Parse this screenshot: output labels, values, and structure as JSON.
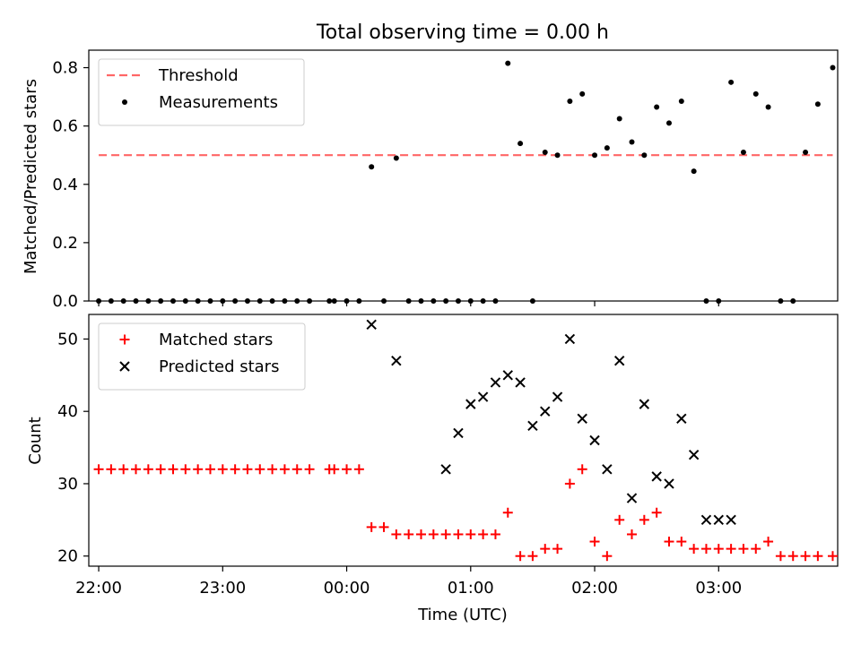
{
  "chart_data": [
    {
      "type": "scatter",
      "title": "Total observing time = 0.00 h",
      "xlabel": "",
      "ylabel": "Matched/Predicted stars",
      "xlim": [
        -0.29,
        2.73
      ],
      "ylim": [
        0.0,
        0.86
      ],
      "yticks": [
        "0.0",
        "0.2",
        "0.4",
        "0.6",
        "0.8"
      ],
      "yticks_values": [
        0.0,
        0.2,
        0.4,
        0.6,
        0.8
      ],
      "grid": false,
      "legend_position": "top-left",
      "threshold": {
        "name": "Threshold",
        "y": 0.5,
        "x_range": [
          -0.25,
          2.71
        ],
        "color": "#ff6666"
      },
      "series": [
        {
          "name": "Measurements",
          "color": "#000000",
          "x": [
            -0.25,
            -0.2,
            -0.15,
            -0.1,
            -0.05,
            0.0,
            0.05,
            0.1,
            0.15,
            0.2,
            0.25,
            0.3,
            0.35,
            0.4,
            0.45,
            0.5,
            0.55,
            0.6,
            0.68,
            0.7,
            0.75,
            0.8,
            0.85,
            0.9,
            0.95,
            1.0,
            1.05,
            1.1,
            1.15,
            1.2,
            1.25,
            1.3,
            1.35,
            1.4,
            1.45,
            1.5,
            1.55,
            1.6,
            1.65,
            1.7,
            1.75,
            1.8,
            1.85,
            1.9,
            1.95,
            2.0,
            2.05,
            2.1,
            2.15,
            2.2,
            2.25,
            2.3,
            2.35,
            2.4,
            2.45,
            2.5,
            2.55,
            2.6,
            2.65,
            2.71
          ],
          "y": [
            0,
            0,
            0,
            0,
            0,
            0,
            0,
            0,
            0,
            0,
            0,
            0,
            0,
            0,
            0,
            0,
            0,
            0,
            0,
            0,
            0,
            0,
            0.46,
            0,
            0.49,
            0,
            0,
            0,
            0,
            0,
            0,
            0,
            0,
            0.815,
            0.54,
            0,
            0.51,
            0.5,
            0.685,
            0.71,
            0.5,
            0.525,
            0.625,
            0.545,
            0.5,
            0.665,
            0.61,
            0.685,
            0.445,
            0,
            0,
            0.75,
            0.51,
            0.71,
            0.665,
            0,
            0,
            0.51,
            0.675,
            0.8
          ]
        }
      ]
    },
    {
      "type": "scatter",
      "title": "",
      "xlabel": "Time (UTC)",
      "ylabel": "Count",
      "xlim": [
        -0.29,
        2.73
      ],
      "ylim": [
        18.6,
        53.4
      ],
      "yticks": [
        "20",
        "30",
        "40",
        "50"
      ],
      "yticks_values": [
        20,
        30,
        40,
        50
      ],
      "xticks": [
        "22:00",
        "23:00",
        "00:00",
        "01:00",
        "02:00",
        "03:00"
      ],
      "xticks_values": [
        -0.25,
        0.25,
        0.75,
        1.25,
        1.75,
        2.25
      ],
      "grid": false,
      "legend_position": "top-left",
      "series": [
        {
          "name": "Matched stars",
          "marker": "plus",
          "color": "#ff0000",
          "x": [
            -0.25,
            -0.2,
            -0.15,
            -0.1,
            -0.05,
            0.0,
            0.05,
            0.1,
            0.15,
            0.2,
            0.25,
            0.3,
            0.35,
            0.4,
            0.45,
            0.5,
            0.55,
            0.6,
            0.68,
            0.7,
            0.75,
            0.8,
            0.85,
            0.9,
            0.95,
            1.0,
            1.05,
            1.1,
            1.15,
            1.2,
            1.25,
            1.3,
            1.35,
            1.4,
            1.45,
            1.5,
            1.55,
            1.6,
            1.65,
            1.7,
            1.75,
            1.8,
            1.85,
            1.9,
            1.95,
            2.0,
            2.05,
            2.1,
            2.15,
            2.2,
            2.25,
            2.3,
            2.35,
            2.4,
            2.45,
            2.5,
            2.55,
            2.6,
            2.65,
            2.71
          ],
          "y": [
            32,
            32,
            32,
            32,
            32,
            32,
            32,
            32,
            32,
            32,
            32,
            32,
            32,
            32,
            32,
            32,
            32,
            32,
            32,
            32,
            32,
            32,
            24,
            24,
            23,
            23,
            23,
            23,
            23,
            23,
            23,
            23,
            23,
            26,
            20,
            20,
            21,
            21,
            30,
            32,
            22,
            20,
            25,
            23,
            25,
            26,
            22,
            22,
            21,
            21,
            21,
            21,
            21,
            21,
            22,
            20,
            20,
            20,
            20,
            20
          ]
        },
        {
          "name": "Predicted stars",
          "marker": "x",
          "color": "#000000",
          "x": [
            0.85,
            0.95,
            1.15,
            1.2,
            1.25,
            1.3,
            1.35,
            1.4,
            1.45,
            1.5,
            1.55,
            1.6,
            1.65,
            1.7,
            1.75,
            1.8,
            1.85,
            1.9,
            1.95,
            2.0,
            2.05,
            2.1,
            2.15,
            2.2,
            2.25,
            2.3
          ],
          "y": [
            52,
            47,
            32,
            37,
            41,
            42,
            44,
            45,
            44,
            38,
            40,
            42,
            50,
            39,
            36,
            32,
            47,
            28,
            41,
            31,
            30,
            39,
            34,
            25,
            25,
            25
          ]
        }
      ]
    }
  ]
}
